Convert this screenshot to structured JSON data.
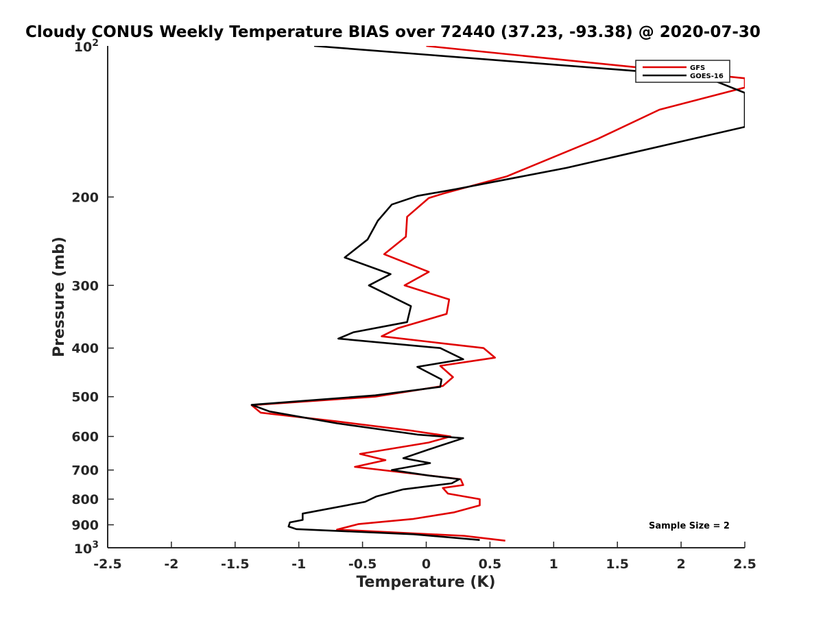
{
  "chart_data": {
    "type": "line",
    "title": "Cloudy CONUS Weekly Temperature BIAS over 72440 (37.23, -93.38) @ 2020-07-30",
    "xlabel": "Temperature (K)",
    "ylabel": "Pressure (mb)",
    "xlim": [
      -2.5,
      2.5
    ],
    "ylim": [
      100,
      1000
    ],
    "y_scale": "log",
    "y_reversed": true,
    "grid": false,
    "legend_position": "top-right",
    "x_ticks": [
      {
        "value": -2.5,
        "label": "-2.5"
      },
      {
        "value": -2,
        "label": "-2"
      },
      {
        "value": -1.5,
        "label": "-1.5"
      },
      {
        "value": -1,
        "label": "-1"
      },
      {
        "value": -0.5,
        "label": "-0.5"
      },
      {
        "value": 0,
        "label": "0"
      },
      {
        "value": 0.5,
        "label": "0.5"
      },
      {
        "value": 1,
        "label": "1"
      },
      {
        "value": 1.5,
        "label": "1.5"
      },
      {
        "value": 2,
        "label": "2"
      },
      {
        "value": 2.5,
        "label": "2.5"
      }
    ],
    "y_ticks": [
      {
        "value": 200,
        "label": "200"
      },
      {
        "value": 300,
        "label": "300"
      },
      {
        "value": 400,
        "label": "400"
      },
      {
        "value": 500,
        "label": "500"
      },
      {
        "value": 600,
        "label": "600"
      },
      {
        "value": 700,
        "label": "700"
      },
      {
        "value": 800,
        "label": "800"
      },
      {
        "value": 900,
        "label": "900"
      }
    ],
    "y_power_ticks": [
      {
        "value": 100,
        "base": "10",
        "exp": "2"
      },
      {
        "value": 1000,
        "base": "10",
        "exp": "3"
      }
    ],
    "annotation": "Sample Size = 2",
    "series": [
      {
        "name": "GFS",
        "color": "#e00000",
        "points": [
          [
            0.0,
            100
          ],
          [
            2.5,
            116
          ],
          [
            2.5,
            121
          ],
          [
            1.83,
            134
          ],
          [
            1.35,
            153
          ],
          [
            0.63,
            182
          ],
          [
            0.13,
            197
          ],
          [
            0.02,
            201
          ],
          [
            -0.15,
            219
          ],
          [
            -0.16,
            240
          ],
          [
            -0.33,
            260
          ],
          [
            0.02,
            282
          ],
          [
            -0.17,
            300
          ],
          [
            0.18,
            320
          ],
          [
            0.16,
            342
          ],
          [
            -0.22,
            365
          ],
          [
            -0.35,
            379
          ],
          [
            0.45,
            400
          ],
          [
            0.54,
            418
          ],
          [
            0.11,
            434
          ],
          [
            0.21,
            457
          ],
          [
            0.13,
            476
          ],
          [
            -0.4,
            500
          ],
          [
            -1.37,
            520
          ],
          [
            -1.3,
            538
          ],
          [
            -0.7,
            560
          ],
          [
            -0.1,
            585
          ],
          [
            0.19,
            600
          ],
          [
            0.02,
            617
          ],
          [
            -0.52,
            650
          ],
          [
            -0.32,
            669
          ],
          [
            -0.56,
            690
          ],
          [
            0.27,
            730
          ],
          [
            0.29,
            750
          ],
          [
            0.13,
            760
          ],
          [
            0.17,
            780
          ],
          [
            0.42,
            800
          ],
          [
            0.42,
            823
          ],
          [
            0.22,
            850
          ],
          [
            -0.1,
            876
          ],
          [
            -0.53,
            897
          ],
          [
            -0.7,
            920
          ],
          [
            0.3,
            947
          ],
          [
            0.62,
            968
          ]
        ]
      },
      {
        "name": "GOES-16",
        "color": "#000000",
        "points": [
          [
            -0.88,
            100
          ],
          [
            2.0,
            114
          ],
          [
            2.25,
            117
          ],
          [
            2.5,
            124
          ],
          [
            2.5,
            145
          ],
          [
            1.1,
            175
          ],
          [
            0.23,
            193
          ],
          [
            -0.07,
            199
          ],
          [
            -0.27,
            207
          ],
          [
            -0.38,
            223
          ],
          [
            -0.46,
            243
          ],
          [
            -0.64,
            264
          ],
          [
            -0.28,
            285
          ],
          [
            -0.45,
            300
          ],
          [
            -0.12,
            330
          ],
          [
            -0.15,
            355
          ],
          [
            -0.57,
            372
          ],
          [
            -0.69,
            383
          ],
          [
            0.11,
            400
          ],
          [
            0.29,
            421
          ],
          [
            -0.07,
            436
          ],
          [
            0.12,
            462
          ],
          [
            0.11,
            478
          ],
          [
            -0.4,
            497
          ],
          [
            -1.37,
            519
          ],
          [
            -1.23,
            535
          ],
          [
            -0.7,
            565
          ],
          [
            -0.07,
            595
          ],
          [
            0.29,
            605
          ],
          [
            0.02,
            637
          ],
          [
            -0.18,
            663
          ],
          [
            0.03,
            678
          ],
          [
            -0.27,
            700
          ],
          [
            0.02,
            718
          ],
          [
            0.26,
            730
          ],
          [
            0.2,
            744
          ],
          [
            -0.18,
            765
          ],
          [
            -0.39,
            790
          ],
          [
            -0.48,
            810
          ],
          [
            -0.97,
            855
          ],
          [
            -0.97,
            880
          ],
          [
            -1.07,
            890
          ],
          [
            -1.08,
            907
          ],
          [
            -1.02,
            918
          ],
          [
            -0.1,
            940
          ],
          [
            0.42,
            965
          ]
        ]
      }
    ]
  }
}
